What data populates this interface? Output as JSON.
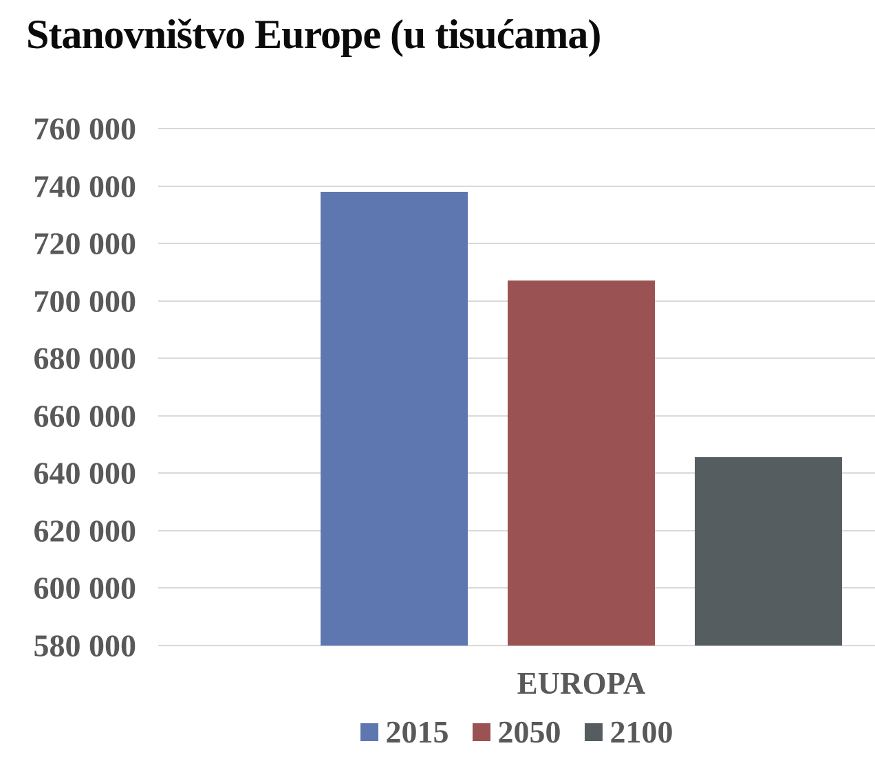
{
  "title": "Stanovništvo Europe (u tisućama)",
  "chart_data": {
    "type": "bar",
    "title": "Stanovništvo Europe (u tisućama)",
    "categories": [
      "EUROPA"
    ],
    "series": [
      {
        "name": "2015",
        "color": "#5f77b0",
        "values": [
          738000
        ]
      },
      {
        "name": "2050",
        "color": "#9b5252",
        "values": [
          707000
        ]
      },
      {
        "name": "2100",
        "color": "#565d60",
        "values": [
          645500
        ]
      }
    ],
    "xlabel": "EUROPA",
    "ylabel": "",
    "ylim": [
      580000,
      760000
    ],
    "ytick_step": 20000,
    "yticks": [
      {
        "label": "760 000",
        "value": 760000
      },
      {
        "label": "740 000",
        "value": 740000
      },
      {
        "label": "720 000",
        "value": 720000
      },
      {
        "label": "700 000",
        "value": 700000
      },
      {
        "label": "680 000",
        "value": 680000
      },
      {
        "label": "660 000",
        "value": 660000
      },
      {
        "label": "640 000",
        "value": 640000
      },
      {
        "label": "620 000",
        "value": 620000
      },
      {
        "label": "600 000",
        "value": 600000
      },
      {
        "label": "580 000",
        "value": 580000
      }
    ],
    "grid": "horizontal",
    "legend_position": "bottom",
    "legend": [
      "2015",
      "2050",
      "2100"
    ]
  },
  "colors": {
    "title_text": "#0b0b0b",
    "axis_text": "#595959",
    "gridline": "#d9d9d9",
    "background": "#ffffff"
  }
}
